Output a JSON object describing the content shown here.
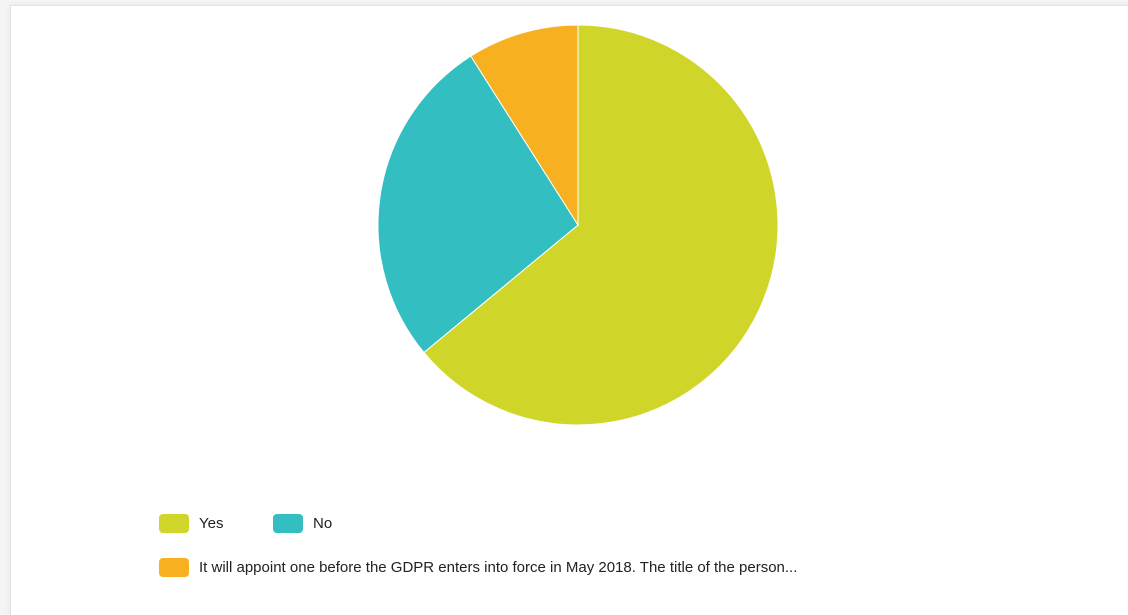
{
  "chart_data": {
    "type": "pie",
    "title": "",
    "legend_position": "bottom-left",
    "slices": [
      {
        "label": "Yes",
        "value": 64,
        "color": "#cfd629"
      },
      {
        "label": "No",
        "value": 27,
        "color": "#33bec1"
      },
      {
        "label": "It will appoint one before the GDPR enters into force in May 2018. The title of the person...",
        "value": 9,
        "color": "#f7b01f"
      }
    ]
  }
}
